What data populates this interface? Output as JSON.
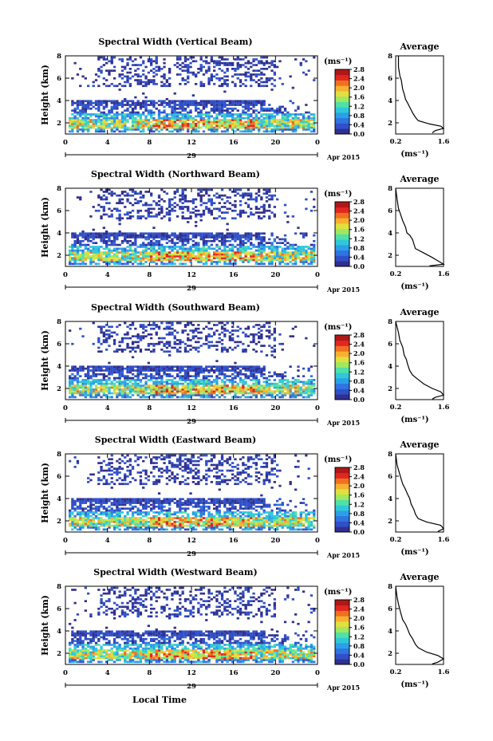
{
  "chart_data": [
    {
      "type": "heatmap",
      "title": "Spectral Width (Vertical Beam)",
      "ylabel": "Height (km)",
      "x_ticks": [
        "0",
        "4",
        "8",
        "12",
        "16",
        "20",
        "0"
      ],
      "y_ticks": [
        "2",
        "4",
        "6",
        "8"
      ],
      "date_label": "29",
      "month_label": "Apr 2015",
      "xlim": [
        0,
        24
      ],
      "ylim": [
        1,
        8
      ],
      "colorbar": {
        "unit": "(ms⁻¹)",
        "ticks": [
          "0.0",
          "0.4",
          "0.8",
          "1.2",
          "1.6",
          "2.0",
          "2.4",
          "2.8"
        ]
      },
      "average_profile": {
        "title": "Average",
        "xlabel": "(ms⁻¹)",
        "x_ticks": [
          "0.2",
          "1.6"
        ],
        "y_ticks": [
          "2",
          "4",
          "6",
          "8"
        ]
      }
    },
    {
      "type": "heatmap",
      "title": "Spectral Width (Northward Beam)",
      "ylabel": "Height (km)",
      "x_ticks": [
        "0",
        "4",
        "8",
        "12",
        "16",
        "20",
        "0"
      ],
      "y_ticks": [
        "2",
        "4",
        "6",
        "8"
      ],
      "date_label": "29",
      "month_label": "Apr 2015",
      "xlim": [
        0,
        24
      ],
      "ylim": [
        1,
        8
      ],
      "colorbar": {
        "unit": "(ms⁻¹)",
        "ticks": [
          "0.0",
          "0.4",
          "0.8",
          "1.2",
          "1.6",
          "2.0",
          "2.4",
          "2.8"
        ]
      },
      "average_profile": {
        "title": "Average",
        "xlabel": "(ms⁻¹)",
        "x_ticks": [
          "0.2",
          "1.6"
        ],
        "y_ticks": [
          "2",
          "4",
          "6",
          "8"
        ]
      }
    },
    {
      "type": "heatmap",
      "title": "Spectral Width (Southward Beam)",
      "ylabel": "Height (km)",
      "x_ticks": [
        "0",
        "4",
        "8",
        "12",
        "16",
        "20",
        "0"
      ],
      "y_ticks": [
        "2",
        "4",
        "6",
        "8"
      ],
      "date_label": "29",
      "month_label": "Apr 2015",
      "xlim": [
        0,
        24
      ],
      "ylim": [
        1,
        8
      ],
      "colorbar": {
        "unit": "(ms⁻¹)",
        "ticks": [
          "0.0",
          "0.4",
          "0.8",
          "1.2",
          "1.6",
          "2.0",
          "2.4",
          "2.8"
        ]
      },
      "average_profile": {
        "title": "Average",
        "xlabel": "(ms⁻¹)",
        "x_ticks": [
          "0.2",
          "1.6"
        ],
        "y_ticks": [
          "2",
          "4",
          "6",
          "8"
        ]
      }
    },
    {
      "type": "heatmap",
      "title": "Spectral Width (Eastward Beam)",
      "ylabel": "Height (km)",
      "x_ticks": [
        "0",
        "4",
        "8",
        "12",
        "16",
        "20",
        "0"
      ],
      "y_ticks": [
        "2",
        "4",
        "6",
        "8"
      ],
      "date_label": "29",
      "month_label": "Apr 2015",
      "xlim": [
        0,
        24
      ],
      "ylim": [
        1,
        8
      ],
      "colorbar": {
        "unit": "(ms⁻¹)",
        "ticks": [
          "0.0",
          "0.4",
          "0.8",
          "1.2",
          "1.6",
          "2.0",
          "2.4",
          "2.8"
        ]
      },
      "average_profile": {
        "title": "Average",
        "xlabel": "(ms⁻¹)",
        "x_ticks": [
          "0.2",
          "1.6"
        ],
        "y_ticks": [
          "2",
          "4",
          "6",
          "8"
        ]
      }
    },
    {
      "type": "heatmap",
      "title": "Spectral Width (Westward Beam)",
      "ylabel": "Height (km)",
      "x_ticks": [
        "0",
        "4",
        "8",
        "12",
        "16",
        "20",
        "0"
      ],
      "y_ticks": [
        "2",
        "4",
        "6",
        "8"
      ],
      "date_label": "29",
      "month_label": "Apr 2015",
      "xlabel": "Local Time",
      "xlim": [
        0,
        24
      ],
      "ylim": [
        1,
        8
      ],
      "colorbar": {
        "unit": "(ms⁻¹)",
        "ticks": [
          "0.0",
          "0.4",
          "0.8",
          "1.2",
          "1.6",
          "2.0",
          "2.4",
          "2.8"
        ]
      },
      "average_profile": {
        "title": "Average",
        "xlabel": "(ms⁻¹)",
        "x_ticks": [
          "0.2",
          "1.6"
        ],
        "y_ticks": [
          "2",
          "4",
          "6",
          "8"
        ]
      }
    }
  ],
  "colormap": [
    "#303090",
    "#3050c8",
    "#2f74e0",
    "#2aa0e8",
    "#30c8d8",
    "#50e0a8",
    "#a0e860",
    "#e0e040",
    "#f8b030",
    "#f07020",
    "#e02820",
    "#b01818"
  ]
}
